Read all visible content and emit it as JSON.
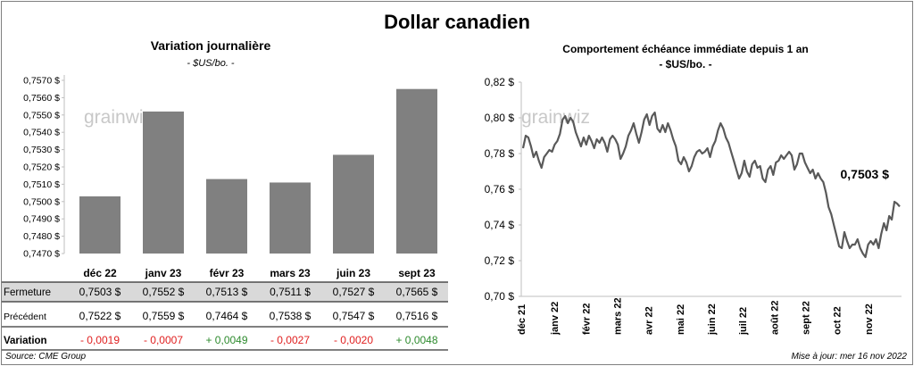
{
  "title": "Dollar canadien",
  "source": "Source: CME Group",
  "updated": "Mise à jour: mer 16 nov 2022",
  "watermark": "grainwiz",
  "colors": {
    "bar": "#808080",
    "line": "#595959",
    "negative": "#e02020",
    "positive": "#2e8b2e",
    "highlight_row": "#d9d9d9"
  },
  "chart_data": [
    {
      "type": "bar",
      "title": "Variation  journalière",
      "subtitle": "- $US/bo. -",
      "categories": [
        "déc 22",
        "janv 23",
        "févr 23",
        "mars 23",
        "juin 23",
        "sept 23"
      ],
      "values": [
        0.7503,
        0.7552,
        0.7513,
        0.7511,
        0.7527,
        0.7565
      ],
      "ylim": [
        0.747,
        0.757
      ],
      "yticks": [
        "0,7470 $",
        "0,7480 $",
        "0,7490 $",
        "0,7500 $",
        "0,7510 $",
        "0,7520 $",
        "0,7530 $",
        "0,7540 $",
        "0,7550 $",
        "0,7560 $",
        "0,7570 $"
      ],
      "table": {
        "rows": [
          {
            "label": "Fermeture",
            "values": [
              "0,7503  $",
              "0,7552  $",
              "0,7513  $",
              "0,7511  $",
              "0,7527  $",
              "0,7565  $"
            ]
          },
          {
            "label": "Précédent",
            "values": [
              "0,7522  $",
              "0,7559  $",
              "0,7464  $",
              "0,7538  $",
              "0,7547  $",
              "0,7516  $"
            ]
          },
          {
            "label": "Variation",
            "values": [
              "- 0,0019",
              "- 0,0007",
              "+ 0,0049",
              "- 0,0027",
              "- 0,0020",
              "+ 0,0048"
            ]
          }
        ]
      }
    },
    {
      "type": "line",
      "title": "Comportement échéance immédiate depuis 1 an",
      "subtitle": "- $US/bo. -",
      "ylim": [
        0.7,
        0.82
      ],
      "yticks": [
        "0,70 $",
        "0,72 $",
        "0,74 $",
        "0,76 $",
        "0,78 $",
        "0,80 $",
        "0,82 $"
      ],
      "xticks": [
        "déc 21",
        "janv 22",
        "févr 22",
        "mars 22",
        "avr 22",
        "mai 22",
        "juin 22",
        "juil 22",
        "août 22",
        "sept 22",
        "oct 22",
        "nov 22"
      ],
      "last_label": "0,7503 $",
      "y": [
        0.783,
        0.79,
        0.789,
        0.784,
        0.778,
        0.781,
        0.776,
        0.772,
        0.778,
        0.78,
        0.782,
        0.781,
        0.785,
        0.787,
        0.791,
        0.799,
        0.801,
        0.797,
        0.8,
        0.798,
        0.792,
        0.788,
        0.784,
        0.789,
        0.785,
        0.79,
        0.787,
        0.783,
        0.788,
        0.786,
        0.789,
        0.786,
        0.781,
        0.788,
        0.79,
        0.788,
        0.785,
        0.777,
        0.78,
        0.784,
        0.79,
        0.793,
        0.797,
        0.791,
        0.786,
        0.792,
        0.799,
        0.802,
        0.796,
        0.801,
        0.803,
        0.794,
        0.792,
        0.796,
        0.792,
        0.797,
        0.793,
        0.788,
        0.784,
        0.776,
        0.774,
        0.778,
        0.775,
        0.77,
        0.773,
        0.778,
        0.781,
        0.782,
        0.78,
        0.781,
        0.783,
        0.778,
        0.784,
        0.787,
        0.793,
        0.797,
        0.794,
        0.789,
        0.786,
        0.781,
        0.776,
        0.771,
        0.766,
        0.769,
        0.776,
        0.77,
        0.767,
        0.774,
        0.776,
        0.772,
        0.773,
        0.766,
        0.764,
        0.771,
        0.773,
        0.768,
        0.775,
        0.776,
        0.779,
        0.777,
        0.779,
        0.781,
        0.779,
        0.771,
        0.774,
        0.78,
        0.78,
        0.775,
        0.772,
        0.769,
        0.771,
        0.766,
        0.769,
        0.766,
        0.764,
        0.758,
        0.75,
        0.746,
        0.74,
        0.734,
        0.728,
        0.727,
        0.736,
        0.731,
        0.727,
        0.729,
        0.729,
        0.732,
        0.727,
        0.724,
        0.722,
        0.729,
        0.731,
        0.729,
        0.732,
        0.727,
        0.735,
        0.741,
        0.737,
        0.745,
        0.743,
        0.753,
        0.752,
        0.7503
      ]
    }
  ]
}
